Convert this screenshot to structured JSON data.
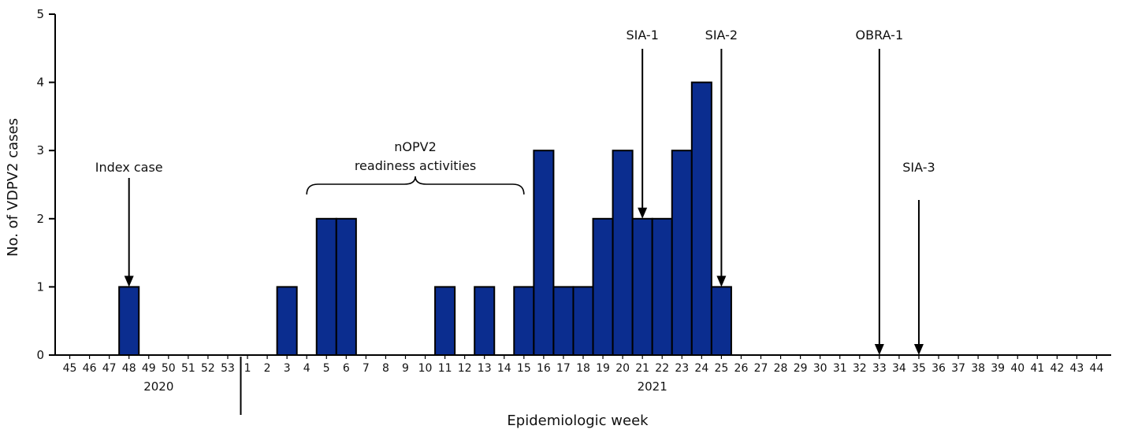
{
  "chart_data": {
    "type": "bar",
    "title": "",
    "xlabel": "Epidemiologic week",
    "ylabel": "No. of VDPV2 cases",
    "ylim": [
      0,
      5
    ],
    "yticks": [
      "0",
      "1",
      "2",
      "3",
      "4",
      "5"
    ],
    "grid": false,
    "bar_color": "#0b2d8f",
    "weeks": [
      "45",
      "46",
      "47",
      "48",
      "49",
      "50",
      "51",
      "52",
      "53",
      "1",
      "2",
      "3",
      "4",
      "5",
      "6",
      "7",
      "8",
      "9",
      "10",
      "11",
      "12",
      "13",
      "14",
      "15",
      "16",
      "17",
      "18",
      "19",
      "20",
      "21",
      "22",
      "23",
      "24",
      "25",
      "26",
      "27",
      "28",
      "29",
      "30",
      "31",
      "32",
      "33",
      "34",
      "35",
      "36",
      "37",
      "38",
      "39",
      "40",
      "41",
      "42",
      "43",
      "44"
    ],
    "values": [
      0,
      0,
      0,
      1,
      0,
      0,
      0,
      0,
      0,
      0,
      0,
      1,
      0,
      2,
      2,
      0,
      0,
      0,
      0,
      1,
      0,
      1,
      0,
      1,
      3,
      1,
      1,
      2,
      3,
      2,
      2,
      3,
      4,
      1,
      0,
      0,
      0,
      0,
      0,
      0,
      0,
      0,
      0,
      0,
      0,
      0,
      0,
      0,
      0,
      0,
      0,
      0,
      0
    ],
    "year_labels": [
      {
        "label": "2020",
        "at_week_index": 4.5
      },
      {
        "label": "2021",
        "at_week_index": 29.5
      }
    ],
    "annotations": [
      {
        "label": "Index case",
        "week_index": 3,
        "arrow_to": 1
      },
      {
        "label": "SIA-1",
        "week_index": 29,
        "arrow_to": 2
      },
      {
        "label": "SIA-2",
        "week_index": 33,
        "arrow_to": 1
      },
      {
        "label": "OBRA-1",
        "week_index": 41,
        "arrow_to": 0
      },
      {
        "label": "SIA-3",
        "week_index": 43,
        "arrow_to": 0
      }
    ],
    "brace": {
      "lines": [
        "nOPV2",
        "readiness activities"
      ],
      "from_week_index": 12,
      "to_week_index": 23
    }
  }
}
